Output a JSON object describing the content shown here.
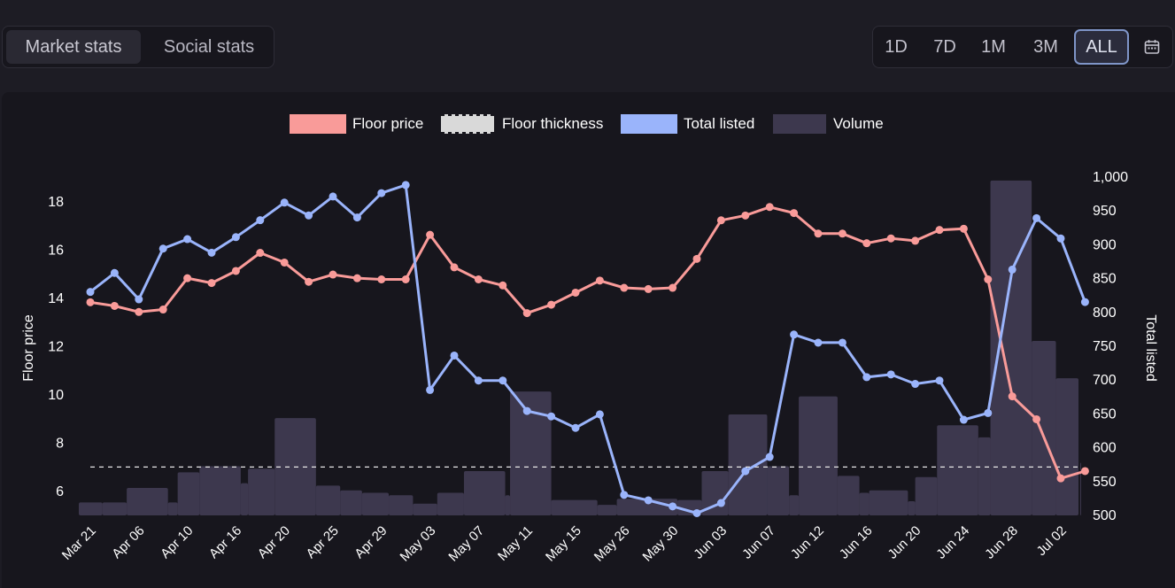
{
  "tabs": {
    "market": "Market stats",
    "social": "Social stats"
  },
  "ranges": [
    "1D",
    "7D",
    "1M",
    "3M",
    "ALL"
  ],
  "active_range": "ALL",
  "icons": {
    "calendar": "calendar-icon"
  },
  "colors": {
    "floor": "#f99b99",
    "listed": "#9ab4fb",
    "volume": "#3d384e",
    "thickness": "#d9d9d9"
  },
  "chart_data": {
    "type": "bar+line",
    "legend": [
      "Floor price",
      "Floor thickness",
      "Total listed",
      "Volume"
    ],
    "legend_position": "top-center",
    "y_left_label": "Floor price",
    "y_right_label": "Total listed",
    "y_left_ticks": [
      "6",
      "8",
      "10",
      "12",
      "14",
      "16",
      "18"
    ],
    "y_right_ticks": [
      "500",
      "550",
      "600",
      "650",
      "700",
      "750",
      "800",
      "850",
      "900",
      "950",
      "1,000"
    ],
    "y_left_range": [
      5,
      19
    ],
    "y_right_range": [
      500,
      1000
    ],
    "x_tick_labels": [
      "Mar 21",
      "Apr 06",
      "Apr 10",
      "Apr 16",
      "Apr 20",
      "Apr 25",
      "Apr 29",
      "May 03",
      "May 07",
      "May 11",
      "May 15",
      "May 26",
      "May 30",
      "Jun 03",
      "Jun 07",
      "Jun 12",
      "Jun 16",
      "Jun 20",
      "Jun 24",
      "Jun 28",
      "Jul 02"
    ],
    "x_tick_positions": [
      0,
      2,
      4,
      6,
      8,
      10,
      12,
      14,
      16,
      18,
      20,
      22,
      24,
      26,
      28,
      30,
      32,
      34,
      36,
      38,
      40
    ],
    "floor_thickness": 6.97,
    "floor_price": [
      13.8,
      13.65,
      13.4,
      13.5,
      14.8,
      14.6,
      15.1,
      15.85,
      15.45,
      14.65,
      14.95,
      14.8,
      14.75,
      14.75,
      16.6,
      15.25,
      14.75,
      14.5,
      13.35,
      13.7,
      14.2,
      14.7,
      14.4,
      14.35,
      14.4,
      15.6,
      17.2,
      17.4,
      17.75,
      17.5,
      16.65,
      16.65,
      16.25,
      16.45,
      16.35,
      16.8,
      16.85,
      14.75,
      9.9,
      8.95,
      6.5,
      6.8
    ],
    "total_listed": [
      829,
      857,
      818,
      893,
      907,
      887,
      910,
      935,
      961,
      942,
      970,
      939,
      975,
      987,
      684,
      735,
      698,
      698,
      653,
      645,
      628,
      648,
      529,
      521,
      512,
      502,
      517,
      564,
      585,
      766,
      754,
      754,
      703,
      707,
      693,
      698,
      640,
      650,
      862,
      938,
      908,
      814
    ],
    "volume_bars": [
      {
        "x0": -0.5,
        "x1": 0.5,
        "v": 5.5
      },
      {
        "x0": 0.5,
        "x1": 1.5,
        "v": 5.5
      },
      {
        "x0": 1.5,
        "x1": 3.2,
        "v": 6.1
      },
      {
        "x0": 3.2,
        "x1": 3.6,
        "v": 5.5
      },
      {
        "x0": 3.6,
        "x1": 4.5,
        "v": 6.75
      },
      {
        "x0": 4.5,
        "x1": 6.2,
        "v": 7.0
      },
      {
        "x0": 6.2,
        "x1": 6.5,
        "v": 6.3
      },
      {
        "x0": 6.5,
        "x1": 7.6,
        "v": 6.9
      },
      {
        "x0": 7.6,
        "x1": 9.3,
        "v": 9.0
      },
      {
        "x0": 9.3,
        "x1": 10.3,
        "v": 6.2
      },
      {
        "x0": 10.3,
        "x1": 11.2,
        "v": 6.0
      },
      {
        "x0": 11.2,
        "x1": 12.3,
        "v": 5.9
      },
      {
        "x0": 12.3,
        "x1": 13.3,
        "v": 5.8
      },
      {
        "x0": 13.3,
        "x1": 14.3,
        "v": 5.45
      },
      {
        "x0": 14.3,
        "x1": 15.4,
        "v": 5.9
      },
      {
        "x0": 15.4,
        "x1": 17.1,
        "v": 6.8
      },
      {
        "x0": 17.1,
        "x1": 17.3,
        "v": 5.8
      },
      {
        "x0": 17.3,
        "x1": 19.0,
        "v": 10.1
      },
      {
        "x0": 19.0,
        "x1": 20.9,
        "v": 5.6
      },
      {
        "x0": 20.9,
        "x1": 21.7,
        "v": 5.4
      },
      {
        "x0": 21.7,
        "x1": 24.2,
        "v": 5.65
      },
      {
        "x0": 24.2,
        "x1": 25.2,
        "v": 5.6
      },
      {
        "x0": 25.2,
        "x1": 26.3,
        "v": 6.8
      },
      {
        "x0": 26.3,
        "x1": 27.9,
        "v": 9.15
      },
      {
        "x0": 27.9,
        "x1": 28.8,
        "v": 7.0
      },
      {
        "x0": 28.8,
        "x1": 29.2,
        "v": 5.8
      },
      {
        "x0": 29.2,
        "x1": 30.8,
        "v": 9.9
      },
      {
        "x0": 30.8,
        "x1": 31.7,
        "v": 6.6
      },
      {
        "x0": 31.7,
        "x1": 32.1,
        "v": 5.9
      },
      {
        "x0": 32.1,
        "x1": 33.7,
        "v": 6.0
      },
      {
        "x0": 33.7,
        "x1": 34.0,
        "v": 5.55
      },
      {
        "x0": 34.0,
        "x1": 34.9,
        "v": 6.55
      },
      {
        "x0": 34.9,
        "x1": 36.6,
        "v": 8.7
      },
      {
        "x0": 36.6,
        "x1": 37.1,
        "v": 8.2
      },
      {
        "x0": 37.1,
        "x1": 38.8,
        "v": 18.85
      },
      {
        "x0": 38.8,
        "x1": 39.8,
        "v": 12.2
      },
      {
        "x0": 39.8,
        "x1": 40.8,
        "v": 10.65
      },
      {
        "x0": 40.8,
        "x1": 41.5,
        "v": 7.15
      }
    ]
  }
}
